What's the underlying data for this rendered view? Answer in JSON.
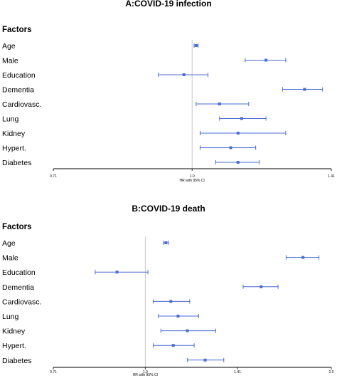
{
  "chart_data": [
    {
      "type": "forest",
      "title": "A:COVID-19 infection",
      "column_header": "Factors",
      "xlabel": "HR with 95% CI",
      "x_scale": "log",
      "xlim": [
        0.71,
        1.41
      ],
      "xticks": [
        "0.71",
        "1.0",
        "1.41"
      ],
      "reference_line": 1.0,
      "grid": false,
      "rows": [
        {
          "label": "Age",
          "hr": 1.01,
          "lower": 1.005,
          "upper": 1.015
        },
        {
          "label": "Male",
          "hr": 1.2,
          "lower": 1.14,
          "upper": 1.26
        },
        {
          "label": "Education",
          "hr": 0.98,
          "lower": 0.92,
          "upper": 1.04
        },
        {
          "label": "Dementia",
          "hr": 1.32,
          "lower": 1.25,
          "upper": 1.38
        },
        {
          "label": "Cardiovasc.",
          "hr": 1.07,
          "lower": 1.01,
          "upper": 1.15
        },
        {
          "label": "Lung",
          "hr": 1.13,
          "lower": 1.07,
          "upper": 1.2
        },
        {
          "label": "Kidney",
          "hr": 1.12,
          "lower": 1.02,
          "upper": 1.26
        },
        {
          "label": "Hypert.",
          "hr": 1.1,
          "lower": 1.02,
          "upper": 1.17
        },
        {
          "label": "Diabetes",
          "hr": 1.12,
          "lower": 1.06,
          "upper": 1.18
        }
      ]
    },
    {
      "type": "forest",
      "title": "B:COVID-19 death",
      "column_header": "Factors",
      "xlabel": "HR with 95% CI",
      "x_scale": "log",
      "xlim": [
        0.71,
        2.0
      ],
      "xticks": [
        "0.71",
        "1.0",
        "1.41",
        "2.0"
      ],
      "reference_line": 1.0,
      "grid": false,
      "rows": [
        {
          "label": "Age",
          "hr": 1.08,
          "lower": 1.07,
          "upper": 1.09
        },
        {
          "label": "Male",
          "hr": 1.8,
          "lower": 1.69,
          "upper": 1.91
        },
        {
          "label": "Education",
          "hr": 0.9,
          "lower": 0.83,
          "upper": 1.01
        },
        {
          "label": "Dementia",
          "hr": 1.54,
          "lower": 1.44,
          "upper": 1.64
        },
        {
          "label": "Cardiovasc.",
          "hr": 1.1,
          "lower": 1.03,
          "upper": 1.18
        },
        {
          "label": "Lung",
          "hr": 1.13,
          "lower": 1.05,
          "upper": 1.22
        },
        {
          "label": "Kidney",
          "hr": 1.17,
          "lower": 1.06,
          "upper": 1.3
        },
        {
          "label": "Hypert.",
          "hr": 1.11,
          "lower": 1.03,
          "upper": 1.2
        },
        {
          "label": "Diabetes",
          "hr": 1.25,
          "lower": 1.17,
          "upper": 1.34
        }
      ]
    }
  ],
  "colors": {
    "estimate": "#4a6cd4",
    "axis": "#000000",
    "reference_line": "#bbbbbb"
  }
}
